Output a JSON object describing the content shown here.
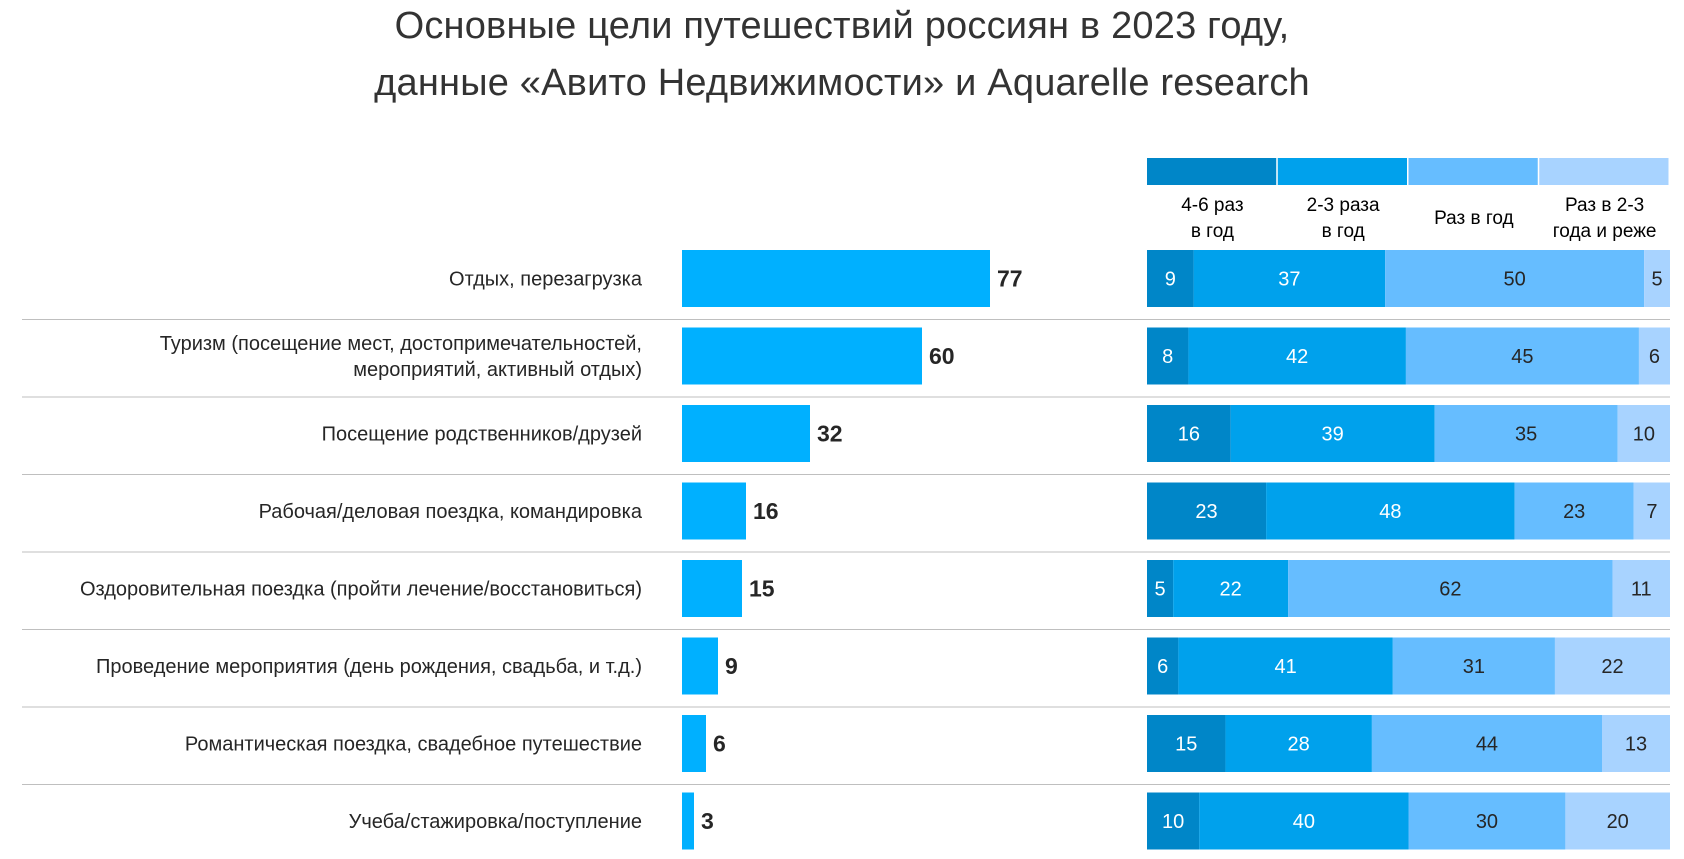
{
  "title": {
    "line1": "Основные цели путешествий россиян в 2023 году,",
    "line2": "данные «Авито Недвижимости» и Aquarelle research"
  },
  "chart_data": [
    {
      "type": "bar",
      "orientation": "horizontal",
      "title": "",
      "categories": [
        [
          "Отдых, перезагрузка"
        ],
        [
          "Туризм (посещение мест, достопримечательностей,",
          "мероприятий, активный отдых)"
        ],
        [
          "Посещение родственников/друзей"
        ],
        [
          "Рабочая/деловая поездка, командировка"
        ],
        [
          "Оздоровительная поездка (пройти лечение/восстановиться)"
        ],
        [
          "Проведение мероприятия (день рождения, свадьба, и т.д.)"
        ],
        [
          "Романтическая поездка, свадебное путешествие"
        ],
        [
          "Учеба/стажировка/поступление"
        ]
      ],
      "values": [
        77,
        60,
        32,
        16,
        15,
        9,
        6,
        3
      ],
      "xlim": [
        0,
        100
      ],
      "color": "#00B0FF",
      "grid": false
    },
    {
      "type": "bar",
      "orientation": "horizontal",
      "stacked": true,
      "percent": true,
      "legend_position": "top",
      "series": [
        {
          "name": [
            "4-6 раз",
            "в год"
          ],
          "color": "#0086C8",
          "text_color": "#ffffff",
          "values": [
            9,
            8,
            16,
            23,
            5,
            6,
            15,
            10
          ]
        },
        {
          "name": [
            "2-3 раза",
            "в год"
          ],
          "color": "#00A1EC",
          "text_color": "#ffffff",
          "values": [
            37,
            42,
            39,
            48,
            22,
            41,
            28,
            40
          ]
        },
        {
          "name": [
            "Раз в год"
          ],
          "color": "#66BDFF",
          "text_color": "#262626",
          "values": [
            50,
            45,
            35,
            23,
            62,
            31,
            44,
            30
          ]
        },
        {
          "name": [
            "Раз в 2-3",
            "года и реже"
          ],
          "color": "#A8D3FF",
          "text_color": "#262626",
          "values": [
            5,
            6,
            10,
            7,
            11,
            22,
            13,
            20
          ]
        }
      ]
    }
  ]
}
